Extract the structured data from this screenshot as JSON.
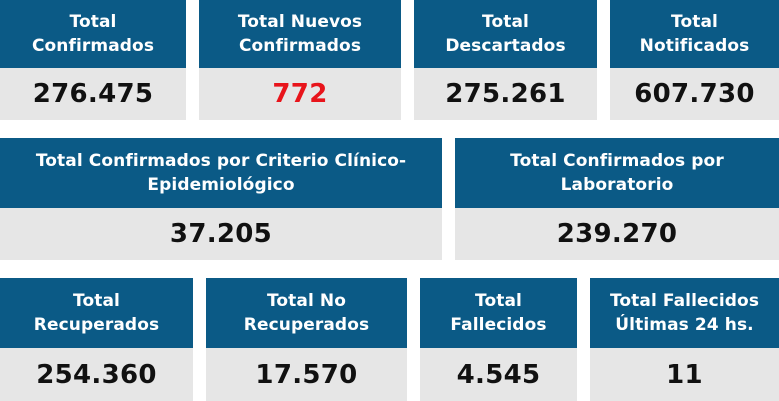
{
  "colors": {
    "header_bg": "#0b5a86",
    "value_bg": "#e6e6e6",
    "value_text": "#111111",
    "highlight": "#e8141b"
  },
  "cards": [
    {
      "title_lines": [
        "Total",
        "Confirmados"
      ],
      "value": "276.475"
    },
    {
      "title_lines": [
        "Total Nuevos",
        "Confirmados"
      ],
      "value": "772"
    },
    {
      "title_lines": [
        "Total",
        "Descartados"
      ],
      "value": "275.261"
    },
    {
      "title_lines": [
        "Total",
        "Notificados"
      ],
      "value": "607.730"
    },
    {
      "title_lines": [
        "Total Confirmados por Criterio Clínico-",
        "Epidemiológico"
      ],
      "value": "37.205"
    },
    {
      "title_lines": [
        "Total Confirmados por",
        "Laboratorio"
      ],
      "value": "239.270"
    },
    {
      "title_lines": [
        "Total",
        "Recuperados"
      ],
      "value": "254.360"
    },
    {
      "title_lines": [
        "Total No",
        "Recuperados"
      ],
      "value": "17.570"
    },
    {
      "title_lines": [
        "Total",
        "Fallecidos"
      ],
      "value": "4.545"
    },
    {
      "title_lines": [
        "Total Fallecidos",
        "Últimas 24 hs."
      ],
      "value": "11"
    }
  ]
}
